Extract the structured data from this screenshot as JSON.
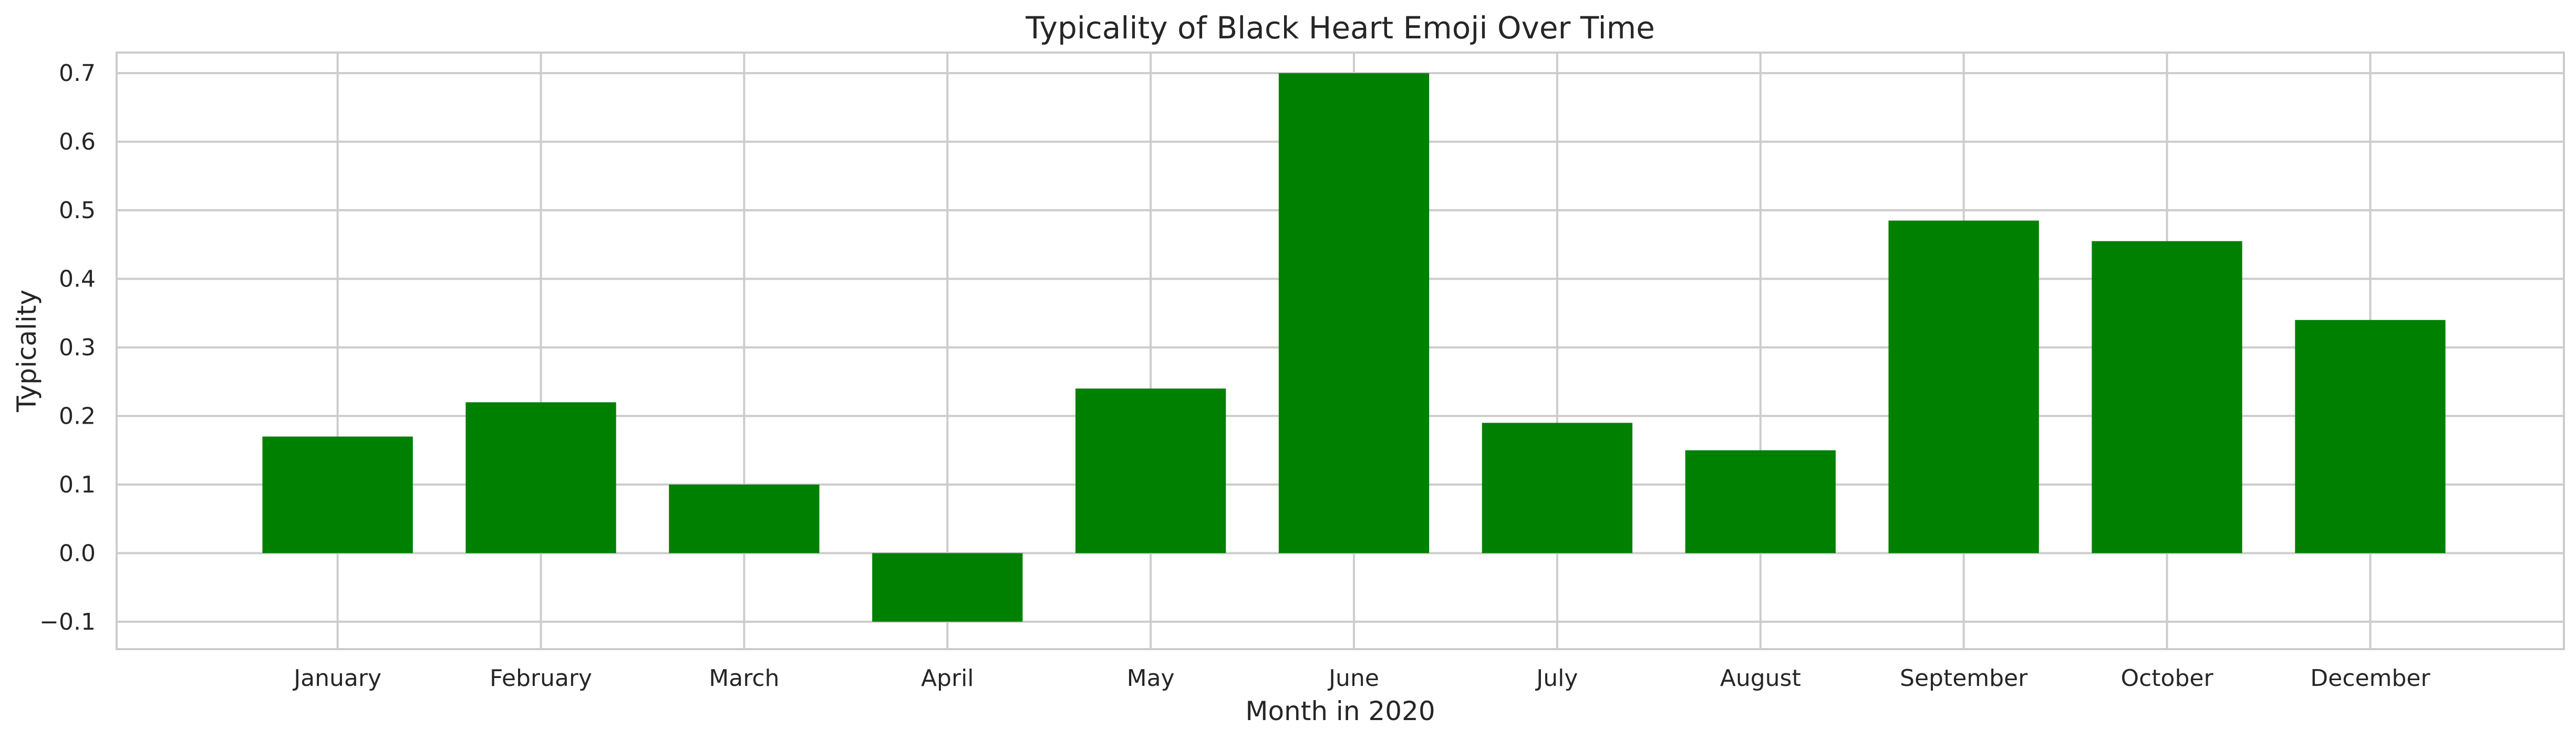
{
  "chart_data": {
    "type": "bar",
    "title": "Typicality of Black Heart Emoji Over Time",
    "xlabel": "Month in 2020",
    "ylabel": "Typicality",
    "categories": [
      "January",
      "February",
      "March",
      "April",
      "May",
      "June",
      "July",
      "August",
      "September",
      "October",
      "December"
    ],
    "values": [
      0.17,
      0.22,
      0.1,
      -0.1,
      0.24,
      0.7,
      0.19,
      0.15,
      0.485,
      0.455,
      0.34
    ],
    "ylim": [
      -0.14,
      0.73
    ],
    "yticks": [
      -0.1,
      0.0,
      0.1,
      0.2,
      0.3,
      0.4,
      0.5,
      0.6,
      0.7
    ],
    "ytick_labels": [
      "−0.1",
      "0.0",
      "0.1",
      "0.2",
      "0.3",
      "0.4",
      "0.5",
      "0.6",
      "0.7"
    ],
    "grid": true,
    "bar_color": "#008000",
    "grid_color": "#cccccc",
    "spine_color": "#cccccc"
  }
}
